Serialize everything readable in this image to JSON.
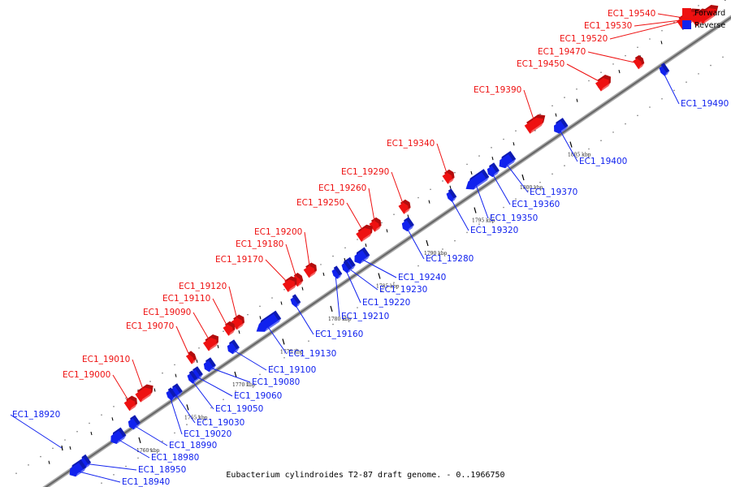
{
  "caption": "Eubacterium cylindroides T2-87 draft genome. - 0..1966750",
  "legend": [
    {
      "label": "Forward",
      "color": "#ee1111"
    },
    {
      "label": "Reverse",
      "color": "#1122ee"
    }
  ],
  "colors": {
    "forward": "#ee1111",
    "reverse": "#1122ee",
    "axis": "#888888"
  },
  "ticks": [
    {
      "kbp": 1760,
      "label": "1760 kbp"
    },
    {
      "kbp": 1765,
      "label": "1765 kbp"
    },
    {
      "kbp": 1770,
      "label": "1770 kbp"
    },
    {
      "kbp": 1775,
      "label": "1775 kbp"
    },
    {
      "kbp": 1780,
      "label": "1780 kbp"
    },
    {
      "kbp": 1785,
      "label": "1785 kbp"
    },
    {
      "kbp": 1790,
      "label": "1790 kbp"
    },
    {
      "kbp": 1795,
      "label": "1795 kbp"
    },
    {
      "kbp": 1800,
      "label": "1800 kbp"
    },
    {
      "kbp": 1805,
      "label": "1805 kbp"
    }
  ],
  "genes": [
    {
      "name": "EC1_19540",
      "strand": "forward"
    },
    {
      "name": "EC1_19530",
      "strand": "forward"
    },
    {
      "name": "EC1_19520",
      "strand": "forward"
    },
    {
      "name": "EC1_19470",
      "strand": "forward"
    },
    {
      "name": "EC1_19450",
      "strand": "forward"
    },
    {
      "name": "EC1_19390",
      "strand": "forward"
    },
    {
      "name": "EC1_19340",
      "strand": "forward"
    },
    {
      "name": "EC1_19290",
      "strand": "forward"
    },
    {
      "name": "EC1_19260",
      "strand": "forward"
    },
    {
      "name": "EC1_19250",
      "strand": "forward"
    },
    {
      "name": "EC1_19200",
      "strand": "forward"
    },
    {
      "name": "EC1_19180",
      "strand": "forward"
    },
    {
      "name": "EC1_19170",
      "strand": "forward"
    },
    {
      "name": "EC1_19120",
      "strand": "forward"
    },
    {
      "name": "EC1_19110",
      "strand": "forward"
    },
    {
      "name": "EC1_19090",
      "strand": "forward"
    },
    {
      "name": "EC1_19070",
      "strand": "forward"
    },
    {
      "name": "EC1_19010",
      "strand": "forward"
    },
    {
      "name": "EC1_19000",
      "strand": "forward"
    },
    {
      "name": "EC1_18920",
      "strand": "reverse"
    },
    {
      "name": "EC1_19490",
      "strand": "reverse"
    },
    {
      "name": "EC1_19400",
      "strand": "reverse"
    },
    {
      "name": "EC1_19370",
      "strand": "reverse"
    },
    {
      "name": "EC1_19360",
      "strand": "reverse"
    },
    {
      "name": "EC1_19350",
      "strand": "reverse"
    },
    {
      "name": "EC1_19320",
      "strand": "reverse"
    },
    {
      "name": "EC1_19280",
      "strand": "reverse"
    },
    {
      "name": "EC1_19240",
      "strand": "reverse"
    },
    {
      "name": "EC1_19230",
      "strand": "reverse"
    },
    {
      "name": "EC1_19220",
      "strand": "reverse"
    },
    {
      "name": "EC1_19210",
      "strand": "reverse"
    },
    {
      "name": "EC1_19160",
      "strand": "reverse"
    },
    {
      "name": "EC1_19130",
      "strand": "reverse"
    },
    {
      "name": "EC1_19100",
      "strand": "reverse"
    },
    {
      "name": "EC1_19080",
      "strand": "reverse"
    },
    {
      "name": "EC1_19060",
      "strand": "reverse"
    },
    {
      "name": "EC1_19050",
      "strand": "reverse"
    },
    {
      "name": "EC1_19030",
      "strand": "reverse"
    },
    {
      "name": "EC1_19020",
      "strand": "reverse"
    },
    {
      "name": "EC1_18990",
      "strand": "reverse"
    },
    {
      "name": "EC1_18980",
      "strand": "reverse"
    },
    {
      "name": "EC1_18950",
      "strand": "reverse"
    },
    {
      "name": "EC1_18940",
      "strand": "reverse"
    }
  ]
}
